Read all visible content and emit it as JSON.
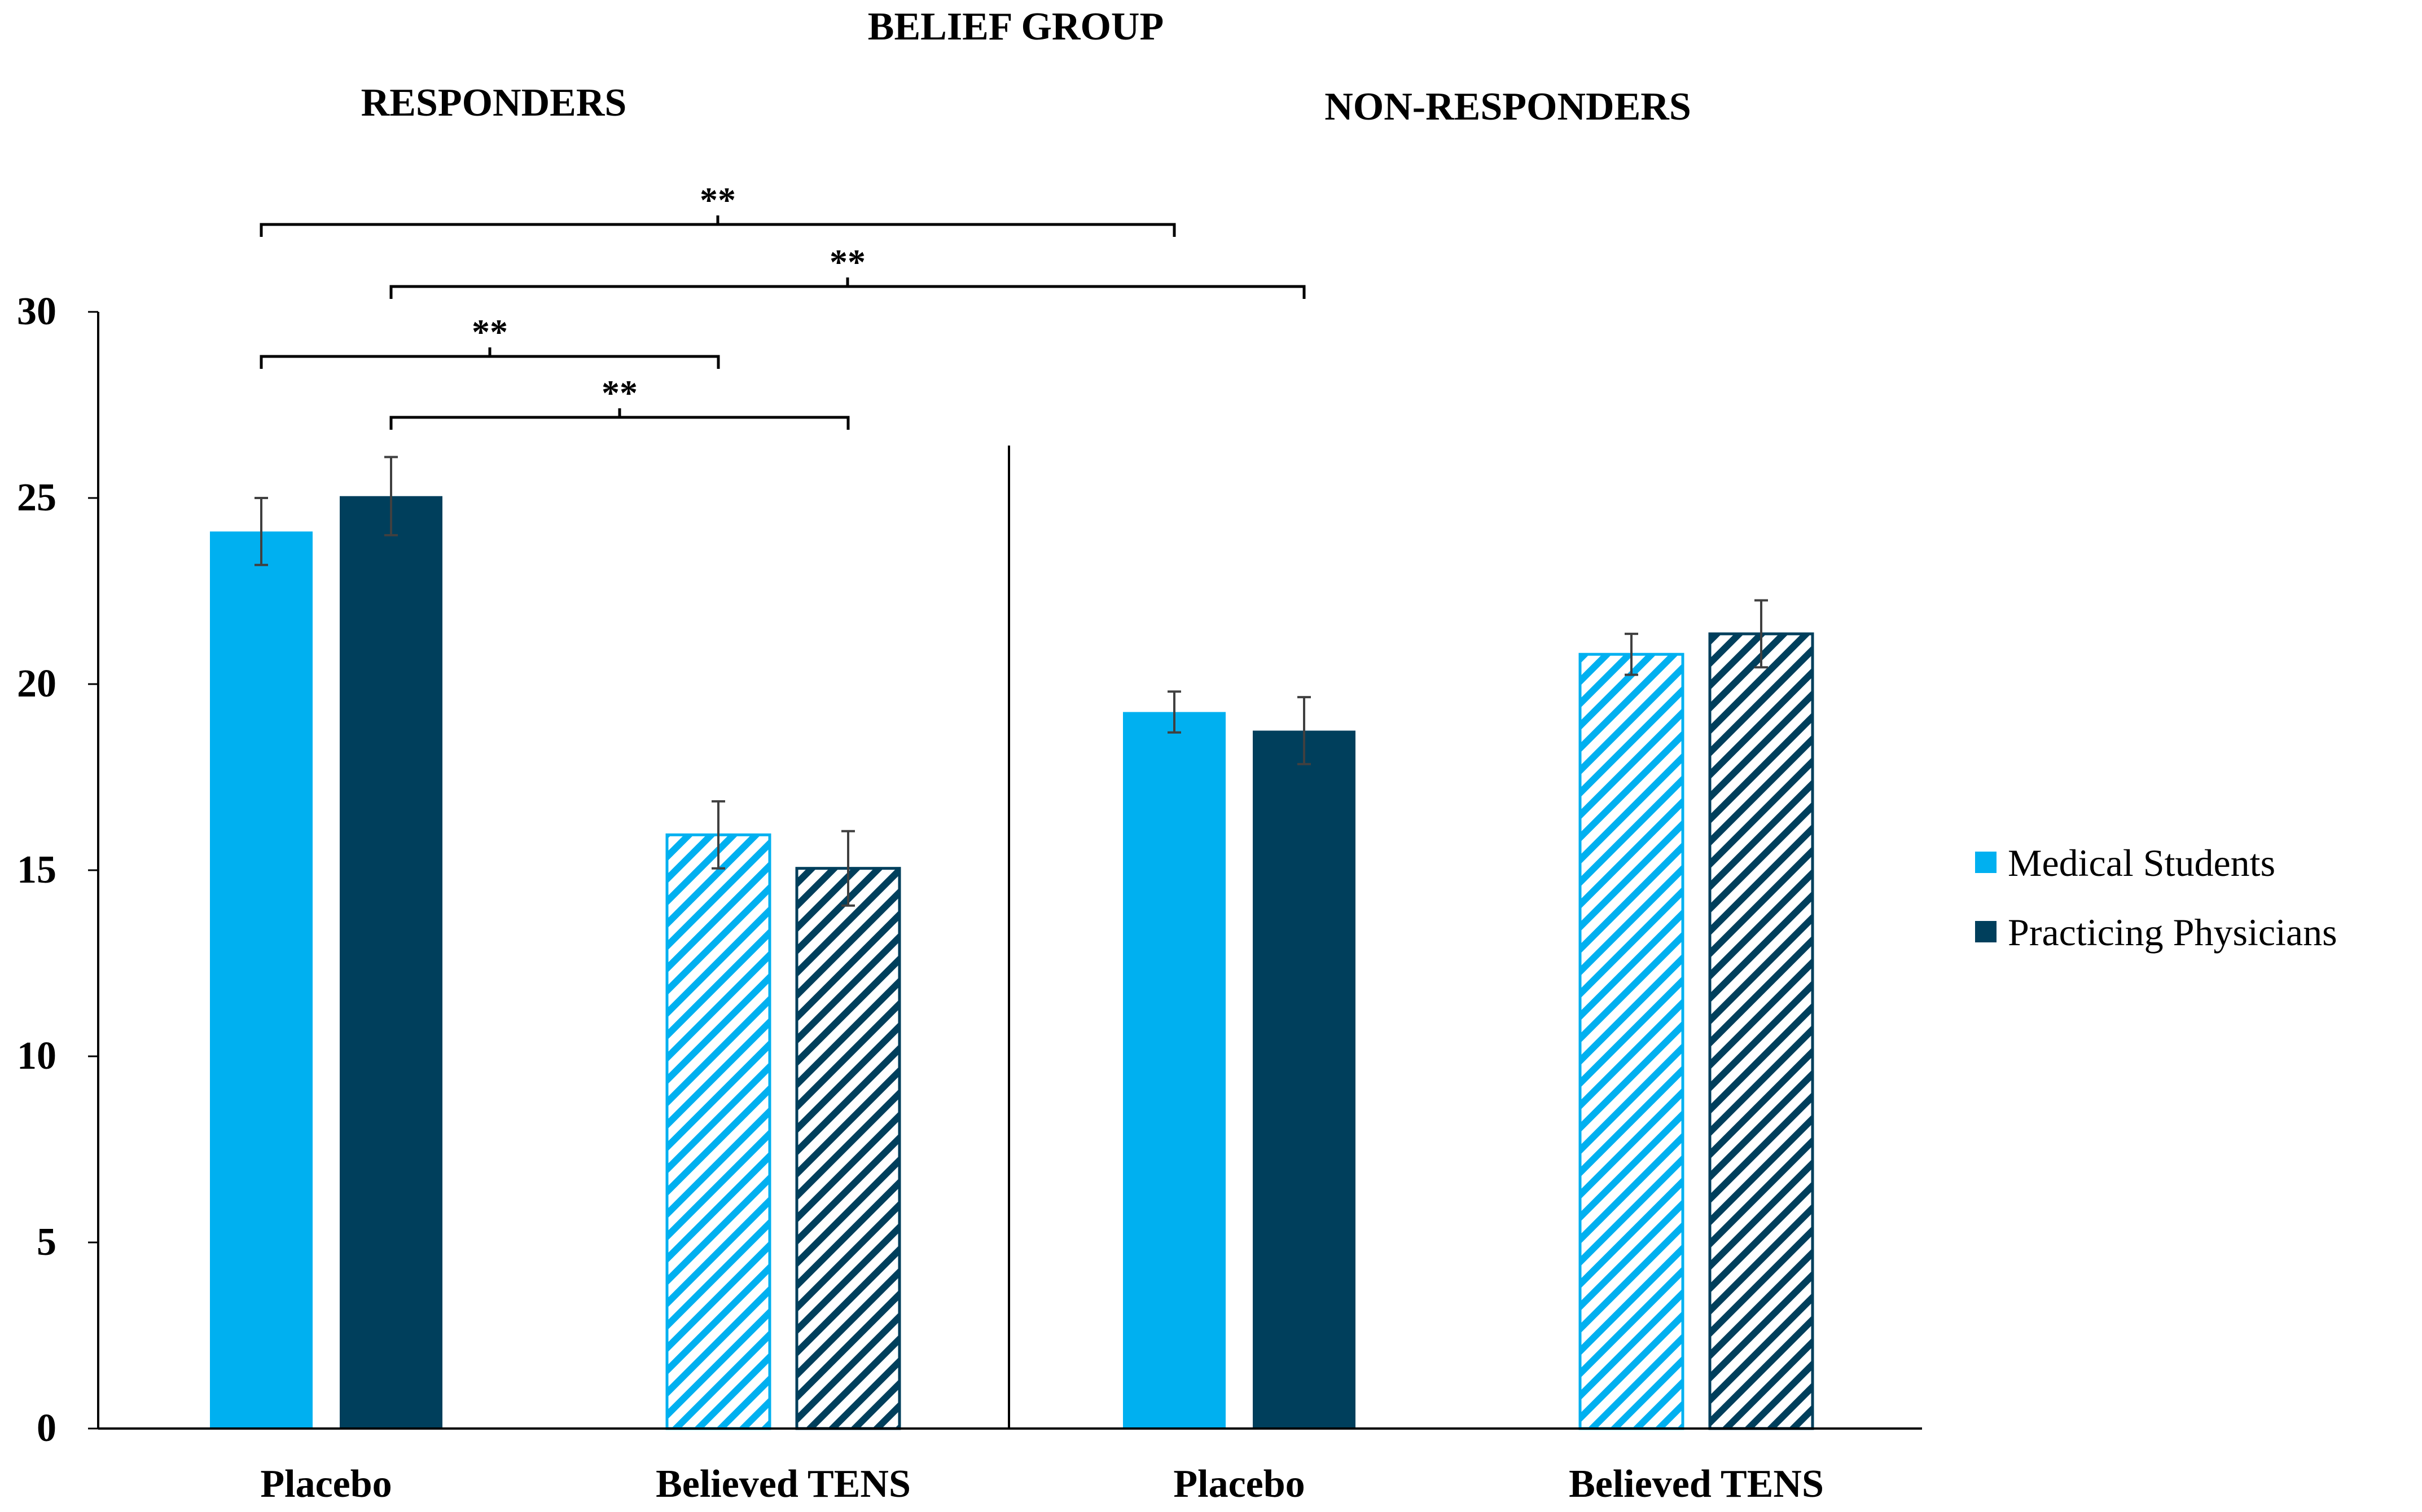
{
  "chart_data": {
    "type": "bar",
    "title": "BELIEF GROUP",
    "xlabel": "",
    "ylabel": "",
    "ylim": [
      0,
      30
    ],
    "yticks": [
      0,
      5,
      10,
      15,
      20,
      25,
      30
    ],
    "groups": [
      {
        "label": "RESPONDERS",
        "categories": [
          "Placebo",
          "Believed TENS"
        ]
      },
      {
        "label": "NON-RESPONDERS",
        "categories": [
          "Placebo",
          "Believed TENS"
        ]
      }
    ],
    "categories": [
      "Placebo",
      "Believed TENS",
      "Placebo",
      "Believed TENS"
    ],
    "hatched_categories": [
      false,
      true,
      false,
      true
    ],
    "series": [
      {
        "name": "Medical Students",
        "color": "#00B0F0",
        "values": [
          24.1,
          15.95,
          19.25,
          20.8
        ],
        "errors": [
          0.9,
          0.9,
          0.55,
          0.55
        ]
      },
      {
        "name": "Practicing Physicians",
        "color": "#003F5C",
        "values": [
          25.05,
          15.05,
          18.75,
          21.35
        ],
        "errors": [
          1.05,
          1.0,
          0.9,
          0.9
        ]
      }
    ],
    "significance_brackets": [
      {
        "label": "**",
        "from": "Medical Students - Placebo (Responders)",
        "to": "Medical Students - Placebo (Non-Responders)"
      },
      {
        "label": "**",
        "from": "Practicing Physicians - Placebo (Responders)",
        "to": "Practicing Physicians - Placebo (Non-Responders)"
      },
      {
        "label": "**",
        "from": "Medical Students - Placebo (Responders)",
        "to": "Medical Students - Believed TENS (Responders)"
      },
      {
        "label": "**",
        "from": "Practicing Physicians - Placebo (Responders)",
        "to": "Practicing Physicians - Believed TENS (Responders)"
      }
    ],
    "legend_position": "right"
  }
}
